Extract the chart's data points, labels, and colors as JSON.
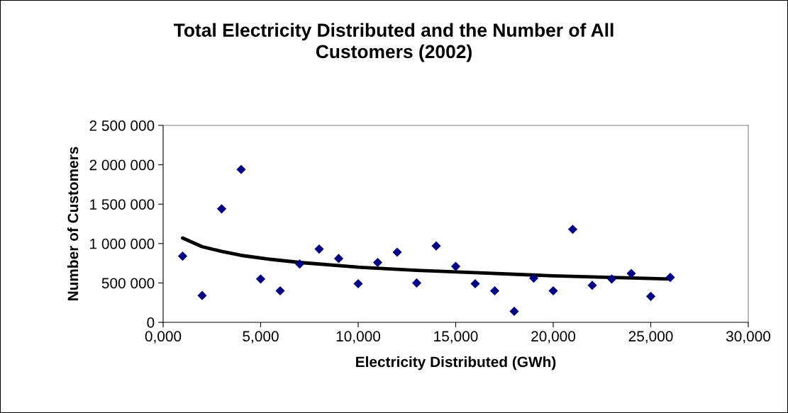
{
  "chart_data": {
    "type": "scatter",
    "title": "Total Electricity Distributed and the Number of All\nCustomers (2002)",
    "xlabel": "Electricity Distributed (GWh)",
    "ylabel": "Number of Customers",
    "marker": "diamond",
    "grid": false,
    "xlim": [
      0,
      30000
    ],
    "xticks": [
      {
        "value": 0,
        "label": "0,000"
      },
      {
        "value": 5000,
        "label": "5,000"
      },
      {
        "value": 10000,
        "label": "10,000"
      },
      {
        "value": 15000,
        "label": "15,000"
      },
      {
        "value": 20000,
        "label": "20,000"
      },
      {
        "value": 25000,
        "label": "25,000"
      },
      {
        "value": 30000,
        "label": "30,000"
      }
    ],
    "ylim": [
      0,
      2500000
    ],
    "yticks": [
      {
        "value": 0,
        "label": "0"
      },
      {
        "value": 500000,
        "label": "500 000"
      },
      {
        "value": 1000000,
        "label": "1 000 000"
      },
      {
        "value": 1500000,
        "label": "1 500 000"
      },
      {
        "value": 2000000,
        "label": "2 000 000"
      },
      {
        "value": 2500000,
        "label": "2 500 000"
      }
    ],
    "series": [
      {
        "color": "#000080",
        "x": [
          1000,
          2000,
          3000,
          4000,
          5000,
          6000,
          7000,
          8000,
          9000,
          10000,
          11000,
          12000,
          13000,
          14000,
          15000,
          16000,
          17000,
          18000,
          19000,
          20000,
          21000,
          22000,
          23000,
          24000,
          25000,
          26000
        ],
        "values": [
          840000,
          340000,
          1440000,
          1940000,
          550000,
          400000,
          740000,
          930000,
          810000,
          490000,
          760000,
          890000,
          500000,
          970000,
          710000,
          490000,
          400000,
          140000,
          560000,
          400000,
          1180000,
          470000,
          550000,
          620000,
          330000,
          570000
        ]
      },
      {
        "type": "line",
        "color": "#000000",
        "marker": "none",
        "x": [
          1000,
          2000,
          3000,
          4000,
          5500,
          7000,
          10000,
          13000,
          16000,
          20000,
          23000,
          26000
        ],
        "values": [
          1070000,
          960000,
          900000,
          850000,
          800000,
          760000,
          700000,
          660000,
          630000,
          590000,
          570000,
          550000
        ]
      }
    ]
  }
}
